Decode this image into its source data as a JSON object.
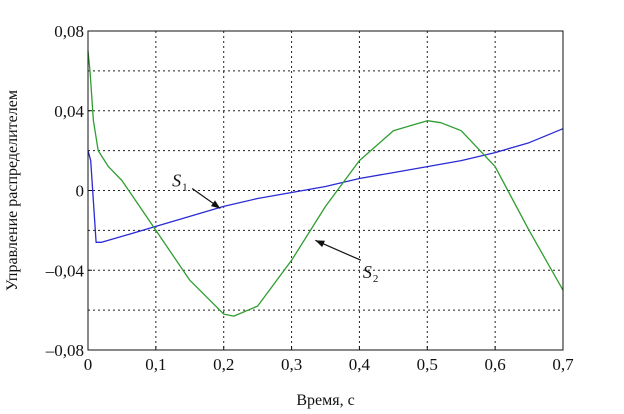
{
  "chart_data": {
    "type": "line",
    "title": "",
    "xlabel": "Время, с",
    "ylabel": "Управление распределителем",
    "xlim": [
      0,
      0.7
    ],
    "ylim": [
      -0.08,
      0.08
    ],
    "grid": true,
    "x_ticks": [
      0,
      0.1,
      0.2,
      0.3,
      0.4,
      0.5,
      0.6,
      0.7
    ],
    "x_tick_labels": [
      "0",
      "0,1",
      "0,2",
      "0,3",
      "0,4",
      "0,5",
      "0,6",
      "0,7"
    ],
    "y_ticks": [
      -0.08,
      -0.04,
      0,
      0.04,
      0.08
    ],
    "y_tick_labels": [
      "–0,08",
      "–0,04",
      "0",
      "0,04",
      "0,08"
    ],
    "series": [
      {
        "name": "S1",
        "color": "#2a2ad6",
        "x": [
          0,
          0.004,
          0.012,
          0.02,
          0.05,
          0.1,
          0.15,
          0.2,
          0.25,
          0.3,
          0.35,
          0.4,
          0.45,
          0.5,
          0.55,
          0.6,
          0.65,
          0.7
        ],
        "y": [
          0.02,
          0.015,
          -0.026,
          -0.026,
          -0.023,
          -0.018,
          -0.013,
          -0.008,
          -0.004,
          -0.001,
          0.002,
          0.006,
          0.009,
          0.012,
          0.015,
          0.019,
          0.024,
          0.031
        ]
      },
      {
        "name": "S2",
        "color": "#2f9e2f",
        "x": [
          0,
          0.003,
          0.008,
          0.015,
          0.03,
          0.05,
          0.08,
          0.1,
          0.15,
          0.2,
          0.215,
          0.25,
          0.3,
          0.35,
          0.4,
          0.45,
          0.5,
          0.52,
          0.55,
          0.6,
          0.65,
          0.7
        ],
        "y": [
          0.07,
          0.06,
          0.035,
          0.02,
          0.012,
          0.005,
          -0.01,
          -0.02,
          -0.045,
          -0.062,
          -0.063,
          -0.058,
          -0.035,
          -0.008,
          0.015,
          0.03,
          0.035,
          0.034,
          0.03,
          0.012,
          -0.02,
          -0.05
        ]
      }
    ],
    "annotations": [
      {
        "label": "S",
        "sub": "1",
        "x": 0.124,
        "y": 0.002,
        "target_x": 0.195,
        "target_y": -0.009
      },
      {
        "label": "S",
        "sub": "2",
        "x": 0.405,
        "y": -0.044,
        "target_x": 0.335,
        "target_y": -0.025
      }
    ]
  }
}
